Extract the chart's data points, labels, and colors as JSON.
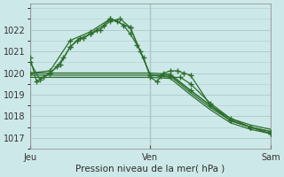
{
  "background_color": "#cde8e8",
  "grid_color": "#b0cccc",
  "line_color": "#2d6e2d",
  "title": "Pression niveau de la mer( hPa )",
  "xtick_labels": [
    "Jeu",
    "Ven",
    "Sam"
  ],
  "xtick_positions": [
    0,
    36,
    72
  ],
  "ylim": [
    1016.5,
    1023.2
  ],
  "yticks": [
    1017,
    1018,
    1019,
    1020,
    1021,
    1022
  ],
  "series": [
    {
      "x": [
        0,
        2,
        4,
        6,
        8,
        10,
        12,
        14,
        16,
        18,
        20,
        22,
        24,
        26,
        28,
        30,
        32,
        34,
        36,
        38,
        40,
        42,
        44,
        46,
        48,
        54,
        60,
        66,
        72
      ],
      "y": [
        1020.7,
        1019.6,
        1019.8,
        1020.0,
        1020.3,
        1020.7,
        1021.2,
        1021.5,
        1021.6,
        1021.8,
        1022.0,
        1022.2,
        1022.5,
        1022.4,
        1022.2,
        1021.8,
        1021.3,
        1020.7,
        1019.8,
        1019.6,
        1020.0,
        1020.1,
        1020.1,
        1020.0,
        1019.9,
        1018.5,
        1017.8,
        1017.5,
        1017.3
      ],
      "marker": true
    },
    {
      "x": [
        0,
        3,
        6,
        9,
        12,
        15,
        18,
        21,
        24,
        27,
        30,
        33,
        36,
        39,
        42,
        45,
        48,
        54,
        60,
        66,
        72
      ],
      "y": [
        1020.5,
        1019.7,
        1020.0,
        1020.4,
        1021.2,
        1021.6,
        1021.8,
        1022.0,
        1022.4,
        1022.5,
        1022.1,
        1021.0,
        1019.9,
        1019.85,
        1019.8,
        1019.8,
        1019.5,
        1018.6,
        1017.9,
        1017.5,
        1017.2
      ],
      "marker": true
    },
    {
      "x": [
        0,
        6,
        12,
        18,
        24,
        30,
        36,
        42,
        48,
        54,
        60,
        66,
        72
      ],
      "y": [
        1020.0,
        1020.1,
        1021.5,
        1021.9,
        1022.5,
        1022.1,
        1019.9,
        1019.9,
        1019.2,
        1018.5,
        1017.8,
        1017.5,
        1017.2
      ],
      "marker": true
    },
    {
      "x": [
        0,
        12,
        24,
        36,
        42,
        48,
        54,
        60,
        66,
        72
      ],
      "y": [
        1020.0,
        1020.0,
        1020.0,
        1020.0,
        1019.95,
        1019.2,
        1018.5,
        1017.9,
        1017.6,
        1017.4
      ],
      "marker": false
    },
    {
      "x": [
        0,
        12,
        24,
        36,
        42,
        48,
        54,
        60,
        66,
        72
      ],
      "y": [
        1019.9,
        1019.9,
        1019.9,
        1019.9,
        1019.85,
        1019.1,
        1018.4,
        1017.8,
        1017.5,
        1017.3
      ],
      "marker": false
    },
    {
      "x": [
        0,
        12,
        24,
        36,
        42,
        48,
        54,
        60,
        66,
        72
      ],
      "y": [
        1019.8,
        1019.8,
        1019.8,
        1019.8,
        1019.75,
        1019.0,
        1018.3,
        1017.7,
        1017.4,
        1017.2
      ],
      "marker": false
    }
  ],
  "vline_x": [
    0,
    36,
    72
  ],
  "vline_color": "#555555"
}
